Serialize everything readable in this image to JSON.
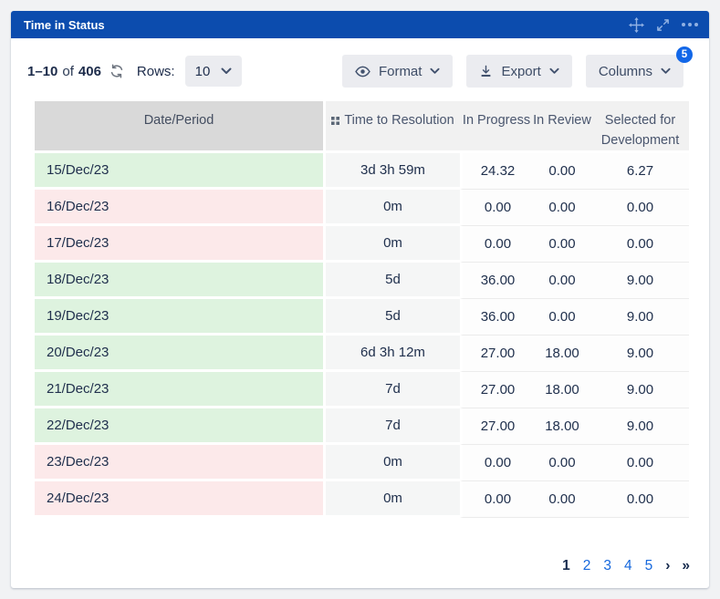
{
  "panel": {
    "title": "Time in Status"
  },
  "titlebar_icons": [
    {
      "name": "move-icon"
    },
    {
      "name": "expand-icon"
    },
    {
      "name": "ellipsis-icon"
    }
  ],
  "toolbar": {
    "range": "1–10",
    "of_label": "of",
    "total": "406",
    "refresh_icon": "refresh-icon",
    "rows_label": "Rows:",
    "rows_value": "10",
    "buttons": {
      "format": {
        "label": "Format",
        "icon": "eye-icon"
      },
      "export": {
        "label": "Export",
        "icon": "download-icon"
      },
      "columns": {
        "label": "Columns",
        "badge": "5"
      }
    }
  },
  "table": {
    "columns": [
      {
        "label": "Date/Period"
      },
      {
        "label": "Time to Resolution",
        "icon": "grid-drag-icon"
      },
      {
        "label": "In Progress"
      },
      {
        "label": "In Review"
      },
      {
        "label": "Selected for Development"
      }
    ],
    "rows": [
      {
        "date": "15/Dec/23",
        "status": "positive",
        "ttr": "3d 3h 59m",
        "in_progress": "24.32",
        "in_review": "0.00",
        "selected": "6.27"
      },
      {
        "date": "16/Dec/23",
        "status": "negative",
        "ttr": "0m",
        "in_progress": "0.00",
        "in_review": "0.00",
        "selected": "0.00"
      },
      {
        "date": "17/Dec/23",
        "status": "negative",
        "ttr": "0m",
        "in_progress": "0.00",
        "in_review": "0.00",
        "selected": "0.00"
      },
      {
        "date": "18/Dec/23",
        "status": "positive",
        "ttr": "5d",
        "in_progress": "36.00",
        "in_review": "0.00",
        "selected": "9.00"
      },
      {
        "date": "19/Dec/23",
        "status": "positive",
        "ttr": "5d",
        "in_progress": "36.00",
        "in_review": "0.00",
        "selected": "9.00"
      },
      {
        "date": "20/Dec/23",
        "status": "positive",
        "ttr": "6d 3h 12m",
        "in_progress": "27.00",
        "in_review": "18.00",
        "selected": "9.00"
      },
      {
        "date": "21/Dec/23",
        "status": "positive",
        "ttr": "7d",
        "in_progress": "27.00",
        "in_review": "18.00",
        "selected": "9.00"
      },
      {
        "date": "22/Dec/23",
        "status": "positive",
        "ttr": "7d",
        "in_progress": "27.00",
        "in_review": "18.00",
        "selected": "9.00"
      },
      {
        "date": "23/Dec/23",
        "status": "negative",
        "ttr": "0m",
        "in_progress": "0.00",
        "in_review": "0.00",
        "selected": "0.00"
      },
      {
        "date": "24/Dec/23",
        "status": "negative",
        "ttr": "0m",
        "in_progress": "0.00",
        "in_review": "0.00",
        "selected": "0.00"
      }
    ]
  },
  "pagination": {
    "current": "1",
    "pages": [
      "2",
      "3",
      "4",
      "5"
    ],
    "next": "›",
    "last": "»"
  },
  "colors": {
    "titlebar_bg": "#0c4cae",
    "titlebar_icon": "#8fb0e3",
    "badge_bg": "#1267e8",
    "link_blue": "#1668dd",
    "row_positive_bg": "#def3df",
    "row_negative_bg": "#fce9ea",
    "button_bg": "#ebecf0",
    "header_date_bg": "#d9d9d9",
    "header_bg": "#f1f1f1"
  }
}
